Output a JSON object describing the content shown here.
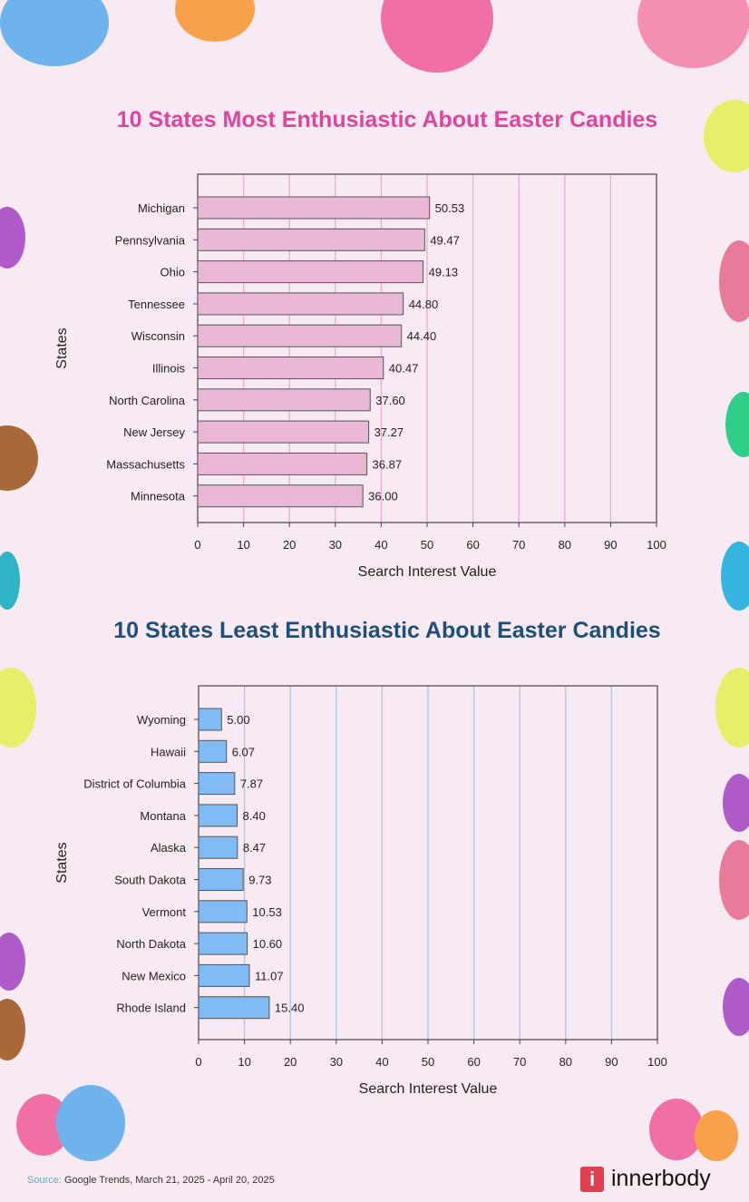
{
  "colors": {
    "background": "#f8eaf3",
    "title1": "#e0449e",
    "title2": "#1d4e7c",
    "bar1": "#ebb7d6",
    "grid1": "#f2a9d2",
    "bar2": "#80bbf6",
    "grid2": "#a9c5ee"
  },
  "chart_data": [
    {
      "type": "bar",
      "orientation": "horizontal",
      "title": "10 States Most Enthusiastic About Easter Candies",
      "xlabel": "Search Interest Value",
      "ylabel": "States",
      "xlim": [
        0,
        100
      ],
      "xticks": [
        0,
        10,
        20,
        30,
        40,
        50,
        60,
        70,
        80,
        90,
        100
      ],
      "grid": true,
      "categories": [
        "Michigan",
        "Pennsylvania",
        "Ohio",
        "Tennessee",
        "Wisconsin",
        "Illinois",
        "North Carolina",
        "New Jersey",
        "Massachusetts",
        "Minnesota"
      ],
      "values": [
        50.53,
        49.47,
        49.13,
        44.8,
        44.4,
        40.47,
        37.6,
        37.27,
        36.87,
        36.0
      ],
      "labels": [
        "50.53",
        "49.47",
        "49.13",
        "44.80",
        "44.40",
        "40.47",
        "37.60",
        "37.27",
        "36.87",
        "36.00"
      ]
    },
    {
      "type": "bar",
      "orientation": "horizontal",
      "title": "10 States Least Enthusiastic About Easter Candies",
      "xlabel": "Search Interest Value",
      "ylabel": "States",
      "xlim": [
        0,
        100
      ],
      "xticks": [
        0,
        10,
        20,
        30,
        40,
        50,
        60,
        70,
        80,
        90,
        100
      ],
      "grid": true,
      "categories": [
        "Wyoming",
        "Hawaii",
        "District of Columbia",
        "Montana",
        "Alaska",
        "South Dakota",
        "Vermont",
        "North Dakota",
        "New Mexico",
        "Rhode Island"
      ],
      "values": [
        5.0,
        6.07,
        7.87,
        8.4,
        8.47,
        9.73,
        10.53,
        10.6,
        11.07,
        15.4
      ],
      "labels": [
        "5.00",
        "6.07",
        "7.87",
        "8.40",
        "8.47",
        "9.73",
        "10.53",
        "10.60",
        "11.07",
        "15.40"
      ]
    }
  ],
  "footer": {
    "source_label": "Source:",
    "source_text": " Google Trends, March 21, 2025 - April 20, 2025",
    "logo_mark": "i",
    "logo_name": "innerbody"
  }
}
